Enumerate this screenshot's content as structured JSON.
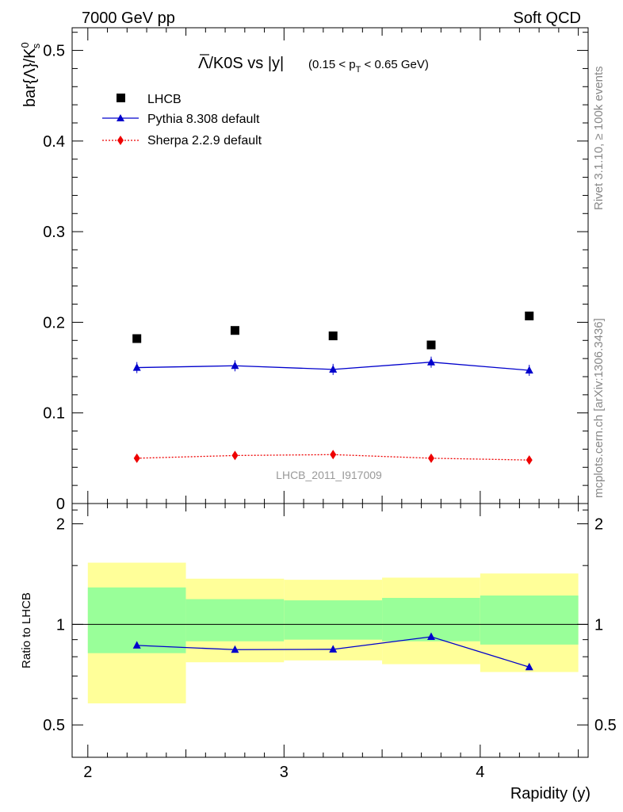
{
  "header": {
    "left": "7000 GeV pp",
    "right": "Soft QCD"
  },
  "side_labels": {
    "rivet": "Rivet 3.1.10, ≥ 100k events",
    "mcplots": "mcplots.cern.ch [arXiv:1306.3436]"
  },
  "title": {
    "main": "Λ/K0S vs |y|",
    "cut_prefix": "(0.15 < p",
    "cut_sub": "T",
    "cut_suffix": " < 0.65 GeV)"
  },
  "analysis_label": "LHCB_2011_I917009",
  "chart_data": [
    {
      "type": "line",
      "panel": "main",
      "ylabel": "bar{Λ}/K",
      "ylabel_sup": "0",
      "ylabel_sub": "s",
      "xlim": [
        1.92,
        4.55
      ],
      "ylim": [
        0,
        0.525
      ],
      "yticks": [
        {
          "v": 0,
          "label": "0"
        },
        {
          "v": 0.1,
          "label": "0.1"
        },
        {
          "v": 0.2,
          "label": "0.2"
        },
        {
          "v": 0.3,
          "label": "0.3"
        },
        {
          "v": 0.4,
          "label": "0.4"
        },
        {
          "v": 0.5,
          "label": "0.5"
        }
      ],
      "legend_position": "top-left",
      "x": [
        2.25,
        2.75,
        3.25,
        3.75,
        4.25
      ],
      "series": [
        {
          "name": "LHCB",
          "marker": "square",
          "color": "#000000",
          "values": [
            0.182,
            0.191,
            0.185,
            0.175,
            0.207
          ]
        },
        {
          "name": "Pythia 8.308 default",
          "marker": "triangle",
          "color": "#0000cc",
          "line": "solid",
          "values": [
            0.15,
            0.152,
            0.148,
            0.156,
            0.147
          ]
        },
        {
          "name": "Sherpa 2.2.9 default",
          "marker": "diamond",
          "color": "#ee0000",
          "line": "dotted",
          "values": [
            0.05,
            0.053,
            0.054,
            0.05,
            0.048
          ]
        }
      ]
    },
    {
      "type": "line",
      "panel": "ratio",
      "ylabel": "Ratio to LHCB",
      "xlabel": "Rapidity (y)",
      "xlim": [
        1.92,
        4.55
      ],
      "ylim": [
        0.4,
        2.3
      ],
      "xticks": [
        {
          "v": 2,
          "label": "2"
        },
        {
          "v": 3,
          "label": "3"
        },
        {
          "v": 4,
          "label": "4"
        }
      ],
      "yticks": [
        {
          "v": 0.5,
          "label": "0.5"
        },
        {
          "v": 1,
          "label": "1"
        },
        {
          "v": 2,
          "label": "2"
        }
      ],
      "bands": [
        {
          "x0": 2.0,
          "x1": 2.5,
          "yellow": [
            0.58,
            1.53
          ],
          "green": [
            0.82,
            1.29
          ]
        },
        {
          "x0": 2.5,
          "x1": 3.0,
          "yellow": [
            0.77,
            1.37
          ],
          "green": [
            0.89,
            1.19
          ]
        },
        {
          "x0": 3.0,
          "x1": 3.5,
          "yellow": [
            0.78,
            1.36
          ],
          "green": [
            0.9,
            1.18
          ]
        },
        {
          "x0": 3.5,
          "x1": 4.0,
          "yellow": [
            0.76,
            1.38
          ],
          "green": [
            0.89,
            1.2
          ]
        },
        {
          "x0": 4.0,
          "x1": 4.5,
          "yellow": [
            0.72,
            1.42
          ],
          "green": [
            0.87,
            1.22
          ]
        }
      ],
      "x": [
        2.25,
        2.75,
        3.25,
        3.75,
        4.25
      ],
      "series": [
        {
          "name": "Pythia 8.308 default",
          "marker": "triangle",
          "color": "#0000cc",
          "values": [
            0.865,
            0.84,
            0.842,
            0.918,
            0.745
          ]
        }
      ]
    }
  ]
}
